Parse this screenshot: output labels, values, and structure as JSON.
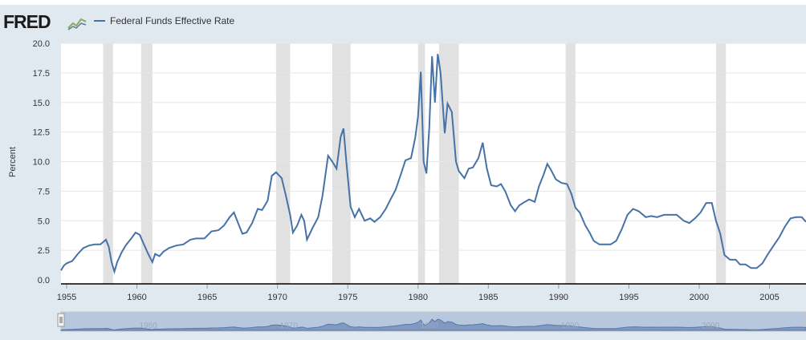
{
  "header": {
    "logo_text": "FRED",
    "logo_icon": "chart-line-icon",
    "legend_label": "Federal Funds Effective Rate",
    "series_color": "#4572a7",
    "recession_color": "#e1e1e1"
  },
  "chart_data": {
    "type": "line",
    "title": "",
    "xlabel": "",
    "ylabel": "Percent",
    "xlim": [
      1954.6,
      2007.6
    ],
    "ylim": [
      0,
      20
    ],
    "y_ticks": [
      "0.0",
      "2.5",
      "5.0",
      "7.5",
      "10.0",
      "12.5",
      "15.0",
      "17.5",
      "20.0"
    ],
    "y_tick_values": [
      0,
      2.5,
      5,
      7.5,
      10,
      12.5,
      15,
      17.5,
      20
    ],
    "x_ticks": [
      "1955",
      "1960",
      "1965",
      "1970",
      "1975",
      "1980",
      "1985",
      "1990",
      "1995",
      "2000",
      "2005"
    ],
    "x_tick_values": [
      1955,
      1960,
      1965,
      1970,
      1975,
      1980,
      1985,
      1990,
      1995,
      2000,
      2005
    ],
    "grid": true,
    "legend": "top-left",
    "recessions": [
      [
        1957.6,
        1958.3
      ],
      [
        1960.3,
        1961.1
      ],
      [
        1969.9,
        1970.9
      ],
      [
        1973.9,
        1975.2
      ],
      [
        1980.0,
        1980.5
      ],
      [
        1981.5,
        1982.9
      ],
      [
        1990.5,
        1991.2
      ],
      [
        2001.2,
        2001.9
      ]
    ],
    "series": [
      {
        "name": "Federal Funds Effective Rate",
        "points": [
          [
            1954.6,
            0.8
          ],
          [
            1954.8,
            1.2
          ],
          [
            1955.0,
            1.4
          ],
          [
            1955.4,
            1.6
          ],
          [
            1955.8,
            2.2
          ],
          [
            1956.2,
            2.7
          ],
          [
            1956.6,
            2.9
          ],
          [
            1957.0,
            3.0
          ],
          [
            1957.4,
            3.0
          ],
          [
            1957.8,
            3.4
          ],
          [
            1958.0,
            2.8
          ],
          [
            1958.2,
            1.5
          ],
          [
            1958.4,
            0.7
          ],
          [
            1958.6,
            1.5
          ],
          [
            1958.9,
            2.3
          ],
          [
            1959.2,
            2.9
          ],
          [
            1959.6,
            3.5
          ],
          [
            1959.9,
            4.0
          ],
          [
            1960.2,
            3.8
          ],
          [
            1960.5,
            3.0
          ],
          [
            1960.8,
            2.2
          ],
          [
            1961.1,
            1.5
          ],
          [
            1961.3,
            2.2
          ],
          [
            1961.6,
            2.0
          ],
          [
            1961.9,
            2.4
          ],
          [
            1962.3,
            2.7
          ],
          [
            1962.8,
            2.9
          ],
          [
            1963.3,
            3.0
          ],
          [
            1963.8,
            3.4
          ],
          [
            1964.2,
            3.5
          ],
          [
            1964.8,
            3.5
          ],
          [
            1965.3,
            4.1
          ],
          [
            1965.8,
            4.2
          ],
          [
            1966.2,
            4.6
          ],
          [
            1966.6,
            5.3
          ],
          [
            1966.9,
            5.7
          ],
          [
            1967.2,
            4.8
          ],
          [
            1967.5,
            3.9
          ],
          [
            1967.8,
            4.0
          ],
          [
            1968.2,
            4.8
          ],
          [
            1968.6,
            6.0
          ],
          [
            1968.9,
            5.9
          ],
          [
            1969.3,
            6.7
          ],
          [
            1969.6,
            8.8
          ],
          [
            1969.9,
            9.1
          ],
          [
            1970.3,
            8.6
          ],
          [
            1970.6,
            7.1
          ],
          [
            1970.9,
            5.5
          ],
          [
            1971.1,
            4.0
          ],
          [
            1971.4,
            4.6
          ],
          [
            1971.7,
            5.5
          ],
          [
            1971.9,
            5.0
          ],
          [
            1972.1,
            3.4
          ],
          [
            1972.5,
            4.4
          ],
          [
            1972.9,
            5.3
          ],
          [
            1973.2,
            7.1
          ],
          [
            1973.6,
            10.5
          ],
          [
            1973.9,
            10.0
          ],
          [
            1974.2,
            9.4
          ],
          [
            1974.5,
            12.1
          ],
          [
            1974.7,
            12.8
          ],
          [
            1974.9,
            10.0
          ],
          [
            1975.2,
            6.2
          ],
          [
            1975.5,
            5.3
          ],
          [
            1975.8,
            6.0
          ],
          [
            1976.2,
            5.0
          ],
          [
            1976.6,
            5.2
          ],
          [
            1976.9,
            4.9
          ],
          [
            1977.3,
            5.3
          ],
          [
            1977.7,
            6.0
          ],
          [
            1978.0,
            6.7
          ],
          [
            1978.4,
            7.6
          ],
          [
            1978.8,
            9.0
          ],
          [
            1979.1,
            10.1
          ],
          [
            1979.5,
            10.3
          ],
          [
            1979.8,
            12.0
          ],
          [
            1980.0,
            13.8
          ],
          [
            1980.2,
            17.6
          ],
          [
            1980.4,
            10.0
          ],
          [
            1980.6,
            9.0
          ],
          [
            1980.8,
            12.8
          ],
          [
            1981.0,
            18.9
          ],
          [
            1981.2,
            15.0
          ],
          [
            1981.4,
            19.1
          ],
          [
            1981.6,
            17.5
          ],
          [
            1981.9,
            12.4
          ],
          [
            1982.1,
            14.9
          ],
          [
            1982.4,
            14.2
          ],
          [
            1982.7,
            10.0
          ],
          [
            1982.9,
            9.2
          ],
          [
            1983.3,
            8.6
          ],
          [
            1983.6,
            9.4
          ],
          [
            1983.9,
            9.5
          ],
          [
            1984.3,
            10.3
          ],
          [
            1984.6,
            11.6
          ],
          [
            1984.9,
            9.4
          ],
          [
            1985.2,
            8.0
          ],
          [
            1985.6,
            7.9
          ],
          [
            1985.9,
            8.1
          ],
          [
            1986.2,
            7.5
          ],
          [
            1986.6,
            6.3
          ],
          [
            1986.9,
            5.8
          ],
          [
            1987.2,
            6.3
          ],
          [
            1987.6,
            6.6
          ],
          [
            1987.9,
            6.8
          ],
          [
            1988.3,
            6.6
          ],
          [
            1988.6,
            7.9
          ],
          [
            1988.9,
            8.8
          ],
          [
            1989.2,
            9.8
          ],
          [
            1989.5,
            9.2
          ],
          [
            1989.8,
            8.5
          ],
          [
            1990.2,
            8.2
          ],
          [
            1990.6,
            8.1
          ],
          [
            1990.9,
            7.3
          ],
          [
            1991.2,
            6.1
          ],
          [
            1991.5,
            5.7
          ],
          [
            1991.9,
            4.6
          ],
          [
            1992.2,
            4.0
          ],
          [
            1992.5,
            3.3
          ],
          [
            1992.9,
            3.0
          ],
          [
            1993.3,
            3.0
          ],
          [
            1993.7,
            3.0
          ],
          [
            1994.1,
            3.3
          ],
          [
            1994.5,
            4.3
          ],
          [
            1994.9,
            5.5
          ],
          [
            1995.3,
            6.0
          ],
          [
            1995.7,
            5.8
          ],
          [
            1996.2,
            5.3
          ],
          [
            1996.6,
            5.4
          ],
          [
            1997.0,
            5.3
          ],
          [
            1997.5,
            5.5
          ],
          [
            1997.9,
            5.5
          ],
          [
            1998.4,
            5.5
          ],
          [
            1998.9,
            5.0
          ],
          [
            1999.3,
            4.8
          ],
          [
            1999.7,
            5.2
          ],
          [
            2000.1,
            5.7
          ],
          [
            2000.5,
            6.5
          ],
          [
            2000.9,
            6.5
          ],
          [
            2001.2,
            5.0
          ],
          [
            2001.5,
            3.9
          ],
          [
            2001.8,
            2.1
          ],
          [
            2002.2,
            1.7
          ],
          [
            2002.6,
            1.7
          ],
          [
            2002.9,
            1.3
          ],
          [
            2003.3,
            1.3
          ],
          [
            2003.7,
            1.0
          ],
          [
            2004.1,
            1.0
          ],
          [
            2004.5,
            1.4
          ],
          [
            2004.9,
            2.2
          ],
          [
            2005.3,
            2.9
          ],
          [
            2005.7,
            3.6
          ],
          [
            2006.1,
            4.5
          ],
          [
            2006.5,
            5.2
          ],
          [
            2006.9,
            5.3
          ],
          [
            2007.3,
            5.3
          ],
          [
            2007.6,
            4.9
          ]
        ]
      }
    ]
  },
  "navigator": {
    "labels": [
      "1960",
      "1970",
      "1980",
      "1990",
      "2000"
    ],
    "label_years": [
      1960,
      1970,
      1980,
      1990,
      2000
    ],
    "handle_icon": "drag-handle-icon"
  }
}
